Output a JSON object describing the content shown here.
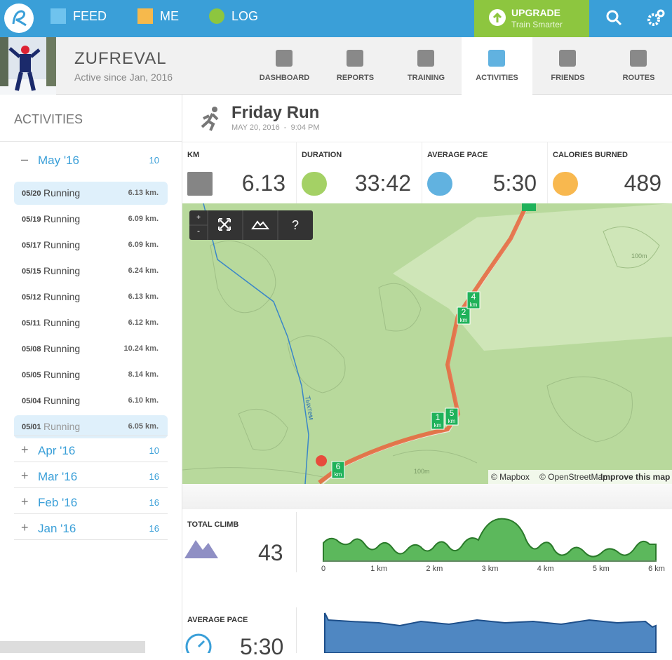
{
  "nav": {
    "items": [
      "FEED",
      "ME",
      "LOG"
    ],
    "upgrade": {
      "title": "UPGRADE",
      "subtitle": "Train Smarter"
    }
  },
  "profile": {
    "name": "ZUFREVAL",
    "since": "Active since Jan, 2016",
    "tabs": [
      "DASHBOARD",
      "REPORTS",
      "TRAINING",
      "ACTIVITIES",
      "FRIENDS",
      "ROUTES"
    ],
    "active_tab": 3
  },
  "sidebar": {
    "title": "ACTIVITIES",
    "months": [
      {
        "toggle": "–",
        "label": "May '16",
        "count": 10,
        "activities": [
          {
            "date": "05/20",
            "type": "Running",
            "distance": "6.13 km."
          },
          {
            "date": "05/19",
            "type": "Running",
            "distance": "6.09 km."
          },
          {
            "date": "05/17",
            "type": "Running",
            "distance": "6.09 km."
          },
          {
            "date": "05/15",
            "type": "Running",
            "distance": "6.24 km."
          },
          {
            "date": "05/12",
            "type": "Running",
            "distance": "6.13 km."
          },
          {
            "date": "05/11",
            "type": "Running",
            "distance": "6.12 km."
          },
          {
            "date": "05/08",
            "type": "Running",
            "distance": "10.24 km."
          },
          {
            "date": "05/05",
            "type": "Running",
            "distance": "8.14 km."
          },
          {
            "date": "05/04",
            "type": "Running",
            "distance": "6.10 km."
          },
          {
            "date": "05/01",
            "type": "Running",
            "distance": "6.05 km."
          }
        ]
      },
      {
        "toggle": "+",
        "label": "Apr '16",
        "count": 10
      },
      {
        "toggle": "+",
        "label": "Mar '16",
        "count": 16
      },
      {
        "toggle": "+",
        "label": "Feb '16",
        "count": 16
      },
      {
        "toggle": "+",
        "label": "Jan '16",
        "count": 16
      }
    ]
  },
  "activity": {
    "title": "Friday Run",
    "datetime": "MAY 20, 2016  -  9:04 PM",
    "stats": [
      {
        "label": "KM",
        "value": "6.13"
      },
      {
        "label": "DURATION",
        "value": "33:42"
      },
      {
        "label": "AVERAGE PACE",
        "value": "5:30"
      },
      {
        "label": "CALORIES BURNED",
        "value": "489"
      }
    ]
  },
  "map": {
    "controls": [
      "+",
      "-",
      "?"
    ],
    "river": "Тыхтем",
    "contour": "100m",
    "markers": [
      {
        "n": "1",
        "unit": "km"
      },
      {
        "n": "2",
        "unit": "km"
      },
      {
        "n": "4",
        "unit": "km"
      },
      {
        "n": "5",
        "unit": "km"
      },
      {
        "n": "6",
        "unit": "km"
      }
    ],
    "attribution": [
      "© Mapbox",
      "© OpenStreetMap",
      "Improve this map"
    ]
  },
  "climb": {
    "label": "TOTAL CLIMB",
    "value": "43",
    "xticks": [
      "0",
      "1 km",
      "2 km",
      "3 km",
      "4 km",
      "5 km",
      "6 km"
    ]
  },
  "pace": {
    "label": "AVERAGE PACE",
    "value": "5:30"
  }
}
